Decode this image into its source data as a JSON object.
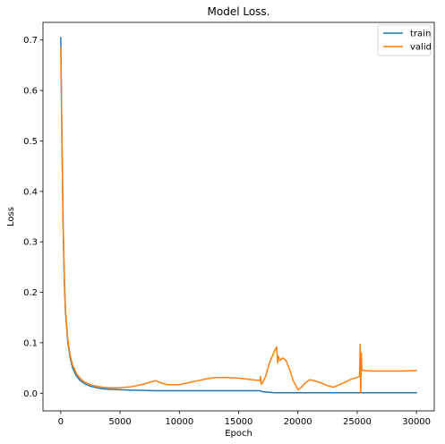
{
  "colors": {
    "train": "#1f77b4",
    "valid": "#ff7f0e"
  },
  "chart_data": {
    "type": "line",
    "title": "Model Loss.",
    "xlabel": "Epoch",
    "ylabel": "Loss",
    "xlim": [
      -1500,
      31500
    ],
    "ylim": [
      -0.035,
      0.735
    ],
    "xticks": [
      0,
      5000,
      10000,
      15000,
      20000,
      25000,
      30000
    ],
    "xtick_labels": [
      "0",
      "5000",
      "10000",
      "15000",
      "20000",
      "25000",
      "30000"
    ],
    "yticks": [
      0.0,
      0.1,
      0.2,
      0.3,
      0.4,
      0.5,
      0.6,
      0.7
    ],
    "ytick_labels": [
      "0.0",
      "0.1",
      "0.2",
      "0.3",
      "0.4",
      "0.5",
      "0.6",
      "0.7"
    ],
    "grid": false,
    "legend_position": "top-right",
    "series": [
      {
        "name": "train",
        "color": "#1f77b4",
        "x": [
          0,
          100,
          200,
          300,
          400,
          600,
          800,
          1000,
          1300,
          1600,
          2000,
          2500,
          3000,
          3500,
          4000,
          5000,
          6000,
          7000,
          8000,
          10000,
          12000,
          14000,
          16000,
          16800,
          17000,
          17500,
          18000,
          20000,
          25000,
          30000
        ],
        "y": [
          0.705,
          0.5,
          0.33,
          0.22,
          0.16,
          0.1,
          0.07,
          0.05,
          0.035,
          0.026,
          0.019,
          0.014,
          0.011,
          0.009,
          0.008,
          0.007,
          0.006,
          0.0055,
          0.005,
          0.005,
          0.005,
          0.005,
          0.005,
          0.005,
          0.003,
          0.002,
          0.001,
          0.001,
          0.001,
          0.001
        ]
      },
      {
        "name": "valid",
        "color": "#ff7f0e",
        "x": [
          0,
          100,
          200,
          300,
          400,
          600,
          800,
          1000,
          1300,
          1600,
          2000,
          2500,
          3000,
          3500,
          4000,
          5000,
          6000,
          7000,
          8000,
          8500,
          9000,
          10000,
          11000,
          12000,
          13000,
          14000,
          15000,
          16000,
          16800,
          16850,
          16900,
          17000,
          17300,
          17600,
          18000,
          18200,
          18300,
          18350,
          18500,
          18700,
          19000,
          19300,
          19600,
          20000,
          20300,
          20600,
          21000,
          21500,
          22000,
          22500,
          23000,
          23500,
          24000,
          24500,
          25000,
          25200,
          25250,
          25300,
          25350,
          25400,
          25500,
          26000,
          27000,
          28000,
          29000,
          30000
        ],
        "y": [
          0.685,
          0.5,
          0.34,
          0.23,
          0.165,
          0.105,
          0.075,
          0.055,
          0.04,
          0.03,
          0.022,
          0.017,
          0.014,
          0.012,
          0.011,
          0.011,
          0.013,
          0.018,
          0.025,
          0.02,
          0.017,
          0.017,
          0.022,
          0.027,
          0.031,
          0.031,
          0.03,
          0.027,
          0.025,
          0.033,
          0.018,
          0.02,
          0.035,
          0.06,
          0.082,
          0.092,
          0.06,
          0.073,
          0.065,
          0.07,
          0.065,
          0.047,
          0.025,
          0.007,
          0.012,
          0.02,
          0.027,
          0.024,
          0.02,
          0.015,
          0.012,
          0.017,
          0.022,
          0.028,
          0.031,
          0.034,
          0.097,
          0.001,
          0.08,
          0.046,
          0.045,
          0.044,
          0.044,
          0.044,
          0.044,
          0.045
        ]
      }
    ]
  }
}
